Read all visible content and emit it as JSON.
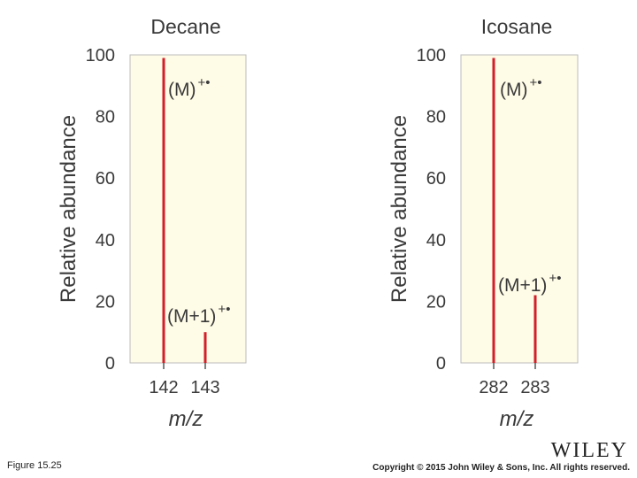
{
  "chart_data": [
    {
      "type": "bar",
      "title": "Decane",
      "xlabel": "m/z",
      "ylabel": "Relative abundance",
      "ylim": [
        0,
        100
      ],
      "yticks": [
        "0",
        "20",
        "40",
        "60",
        "80",
        "100"
      ],
      "categories": [
        "142",
        "143"
      ],
      "values": [
        99,
        10
      ],
      "annotations": [
        {
          "text": "(M)",
          "sup": "+•"
        },
        {
          "text": "(M+1)",
          "sup": "+•"
        }
      ],
      "background_color": "#fefbe6",
      "bar_color": "#d41f2b"
    },
    {
      "type": "bar",
      "title": "Icosane",
      "xlabel": "m/z",
      "ylabel": "Relative abundance",
      "ylim": [
        0,
        100
      ],
      "yticks": [
        "0",
        "20",
        "40",
        "60",
        "80",
        "100"
      ],
      "categories": [
        "282",
        "283"
      ],
      "values": [
        99,
        22
      ],
      "annotations": [
        {
          "text": "(M)",
          "sup": "+•"
        },
        {
          "text": "(M+1)",
          "sup": "+•"
        }
      ],
      "background_color": "#fefbe6",
      "bar_color": "#d41f2b"
    }
  ],
  "footer": {
    "figure_label": "Figure 15.25",
    "copyright": "Copyright © 2015 John Wiley & Sons, Inc. All rights reserved.",
    "logo_text": "WILEY"
  }
}
